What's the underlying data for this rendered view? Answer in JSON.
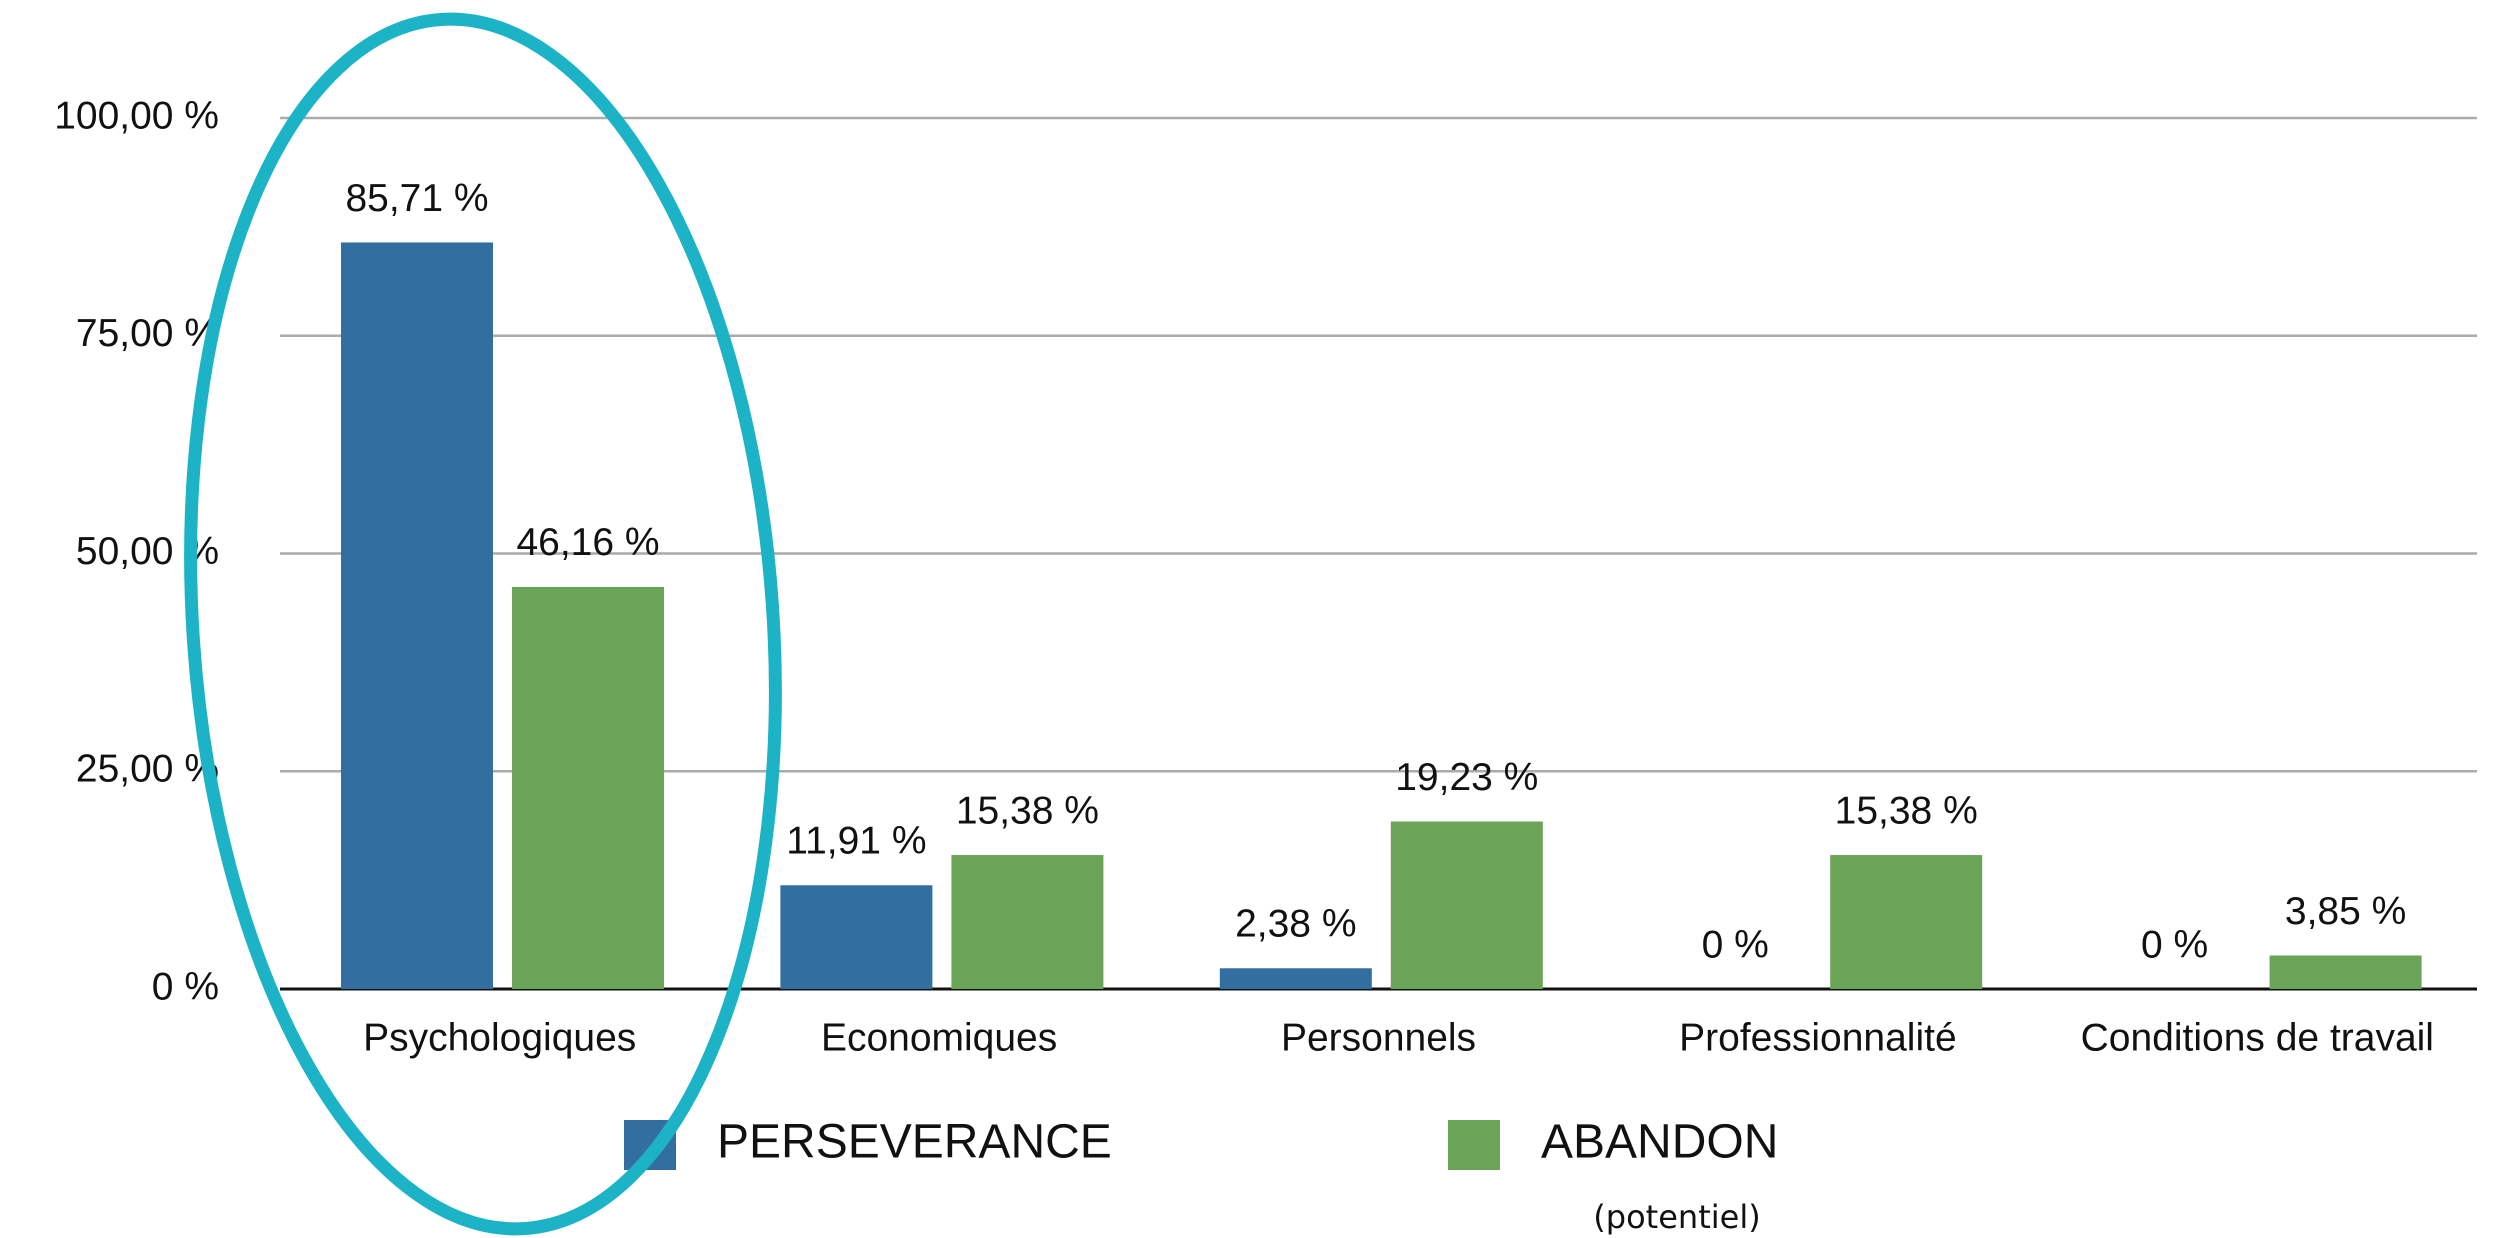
{
  "chart_data": {
    "type": "bar",
    "categories": [
      "Psychologiques",
      "Economiques",
      "Personnels",
      "Professionnalité",
      "Conditions de travail"
    ],
    "series": [
      {
        "name": "PERSEVERANCE",
        "color": "#326e9f",
        "values": [
          85.71,
          11.91,
          2.38,
          0,
          0
        ],
        "value_labels": [
          "85,71 %",
          "11,91 %",
          "2,38 %",
          "0 %",
          "0 %"
        ]
      },
      {
        "name": "ABANDON",
        "color": "#6aa457",
        "values": [
          46.16,
          15.38,
          19.23,
          15.38,
          3.85
        ],
        "value_labels": [
          "46,16 %",
          "15,38 %",
          "19,23 %",
          "15,38 %",
          "3,85 %"
        ]
      }
    ],
    "ylim": [
      0,
      100
    ],
    "yticks": [
      {
        "value": 0,
        "label": "0 %"
      },
      {
        "value": 25,
        "label": "25,00 %"
      },
      {
        "value": 50,
        "label": "50,00 %"
      },
      {
        "value": 75,
        "label": "75,00 %"
      },
      {
        "value": 100,
        "label": "100,00 %"
      }
    ],
    "grid": true,
    "legend": "bottom",
    "annotation": "(potentiel)"
  }
}
